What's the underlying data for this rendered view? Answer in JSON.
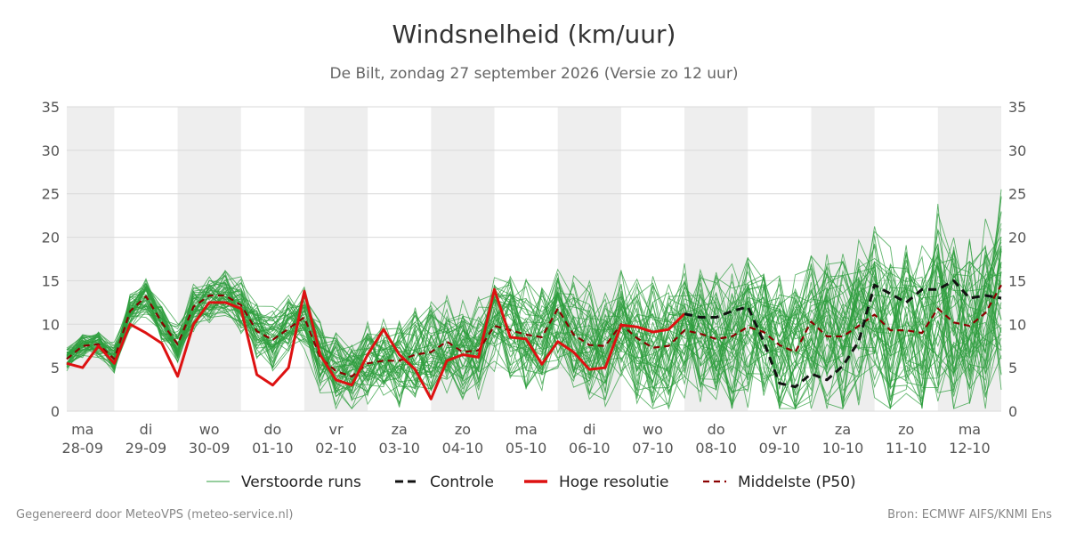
{
  "header": {
    "title": "Windsnelheid (km/uur)",
    "subtitle": "De Bilt, zondag 27 september 2026 (Versie zo 12 uur)"
  },
  "footer": {
    "left": "Gegenereerd door MeteoVPS (meteo-service.nl)",
    "right": "Bron: ECMWF AIFS/KNMI Ens"
  },
  "colors": {
    "ensemble": "#2e9e3e",
    "control": "#111111",
    "hires": "#dd1111",
    "median": "#8b0000",
    "band": "#eeeeee",
    "grid": "#d9d9d9"
  },
  "chart_data": {
    "type": "line",
    "title": "Windsnelheid (km/uur)",
    "ylim": [
      0,
      35
    ],
    "yticks": [
      0,
      5,
      10,
      15,
      20,
      25,
      30,
      35
    ],
    "grid": "horizontal",
    "legend_position": "bottom",
    "x_unit": "days from 28-09 (noon at integer)",
    "xlim": [
      -0.25,
      14.5
    ],
    "day_labels": [
      {
        "day": "ma",
        "date": "28-09"
      },
      {
        "day": "di",
        "date": "29-09"
      },
      {
        "day": "wo",
        "date": "30-09"
      },
      {
        "day": "do",
        "date": "01-10"
      },
      {
        "day": "vr",
        "date": "02-10"
      },
      {
        "day": "za",
        "date": "03-10"
      },
      {
        "day": "zo",
        "date": "04-10"
      },
      {
        "day": "ma",
        "date": "05-10"
      },
      {
        "day": "di",
        "date": "06-10"
      },
      {
        "day": "wo",
        "date": "07-10"
      },
      {
        "day": "do",
        "date": "08-10"
      },
      {
        "day": "vr",
        "date": "09-10"
      },
      {
        "day": "za",
        "date": "10-10"
      },
      {
        "day": "zo",
        "date": "11-10"
      },
      {
        "day": "ma",
        "date": "12-10"
      }
    ],
    "legend": [
      {
        "key": "ensemble",
        "label": "Verstoorde runs",
        "style": "thin"
      },
      {
        "key": "control",
        "label": "Controle",
        "style": "dashed"
      },
      {
        "key": "hires",
        "label": "Hoge resolutie",
        "style": "solid"
      },
      {
        "key": "median",
        "label": "Middelste (P50)",
        "style": "dashed"
      }
    ],
    "series": [
      {
        "key": "hires",
        "x": [
          -0.25,
          0,
          0.25,
          0.5,
          0.75,
          1,
          1.25,
          1.5,
          1.75,
          2,
          2.25,
          2.5,
          2.75,
          3,
          3.25,
          3.5,
          3.75,
          4,
          4.25,
          4.5,
          4.75,
          5,
          5.25,
          5.5,
          5.75,
          6,
          6.25,
          6.5,
          6.75,
          7,
          7.25,
          7.5,
          7.75,
          8,
          8.25,
          8.5,
          8.75,
          9,
          9.25,
          9.5
        ],
        "y": [
          5.5,
          5,
          7.5,
          5.5,
          10,
          9,
          7.8,
          4,
          10,
          12.5,
          12.5,
          11.8,
          4.2,
          3,
          5,
          13.8,
          6.5,
          3.6,
          3,
          6.5,
          9.4,
          6.5,
          4.8,
          1.4,
          5.8,
          6.5,
          6.2,
          14,
          8.5,
          8.3,
          5.4,
          8,
          6.8,
          4.8,
          5,
          9.9,
          9.7,
          9.1,
          9.4,
          11.2
        ]
      },
      {
        "key": "control",
        "x": [
          9.5,
          9.75,
          10,
          10.25,
          10.5,
          10.75,
          11,
          11.25,
          11.5,
          11.75,
          12,
          12.25,
          12.5,
          12.75,
          13,
          13.25,
          13.5,
          13.75,
          14,
          14.25,
          14.5
        ],
        "y": [
          11.2,
          10.8,
          10.8,
          11.5,
          12,
          8,
          3.2,
          2.8,
          4.3,
          3.6,
          5.2,
          8,
          14.5,
          13.5,
          12.5,
          14,
          14,
          15,
          13,
          13.3,
          13
        ]
      },
      {
        "key": "median",
        "x": [
          -0.25,
          0,
          0.25,
          0.5,
          0.75,
          1,
          1.25,
          1.5,
          1.75,
          2,
          2.25,
          2.5,
          2.75,
          3,
          3.25,
          3.5,
          3.75,
          4,
          4.25,
          4.5,
          4.75,
          5,
          5.25,
          5.5,
          5.75,
          6,
          6.25,
          6.5,
          6.75,
          7,
          7.25,
          7.5,
          7.75,
          8,
          8.25,
          8.5,
          8.75,
          9,
          9.25,
          9.5,
          9.75,
          10,
          10.25,
          10.5,
          10.75,
          11,
          11.25,
          11.5,
          11.75,
          12,
          12.25,
          12.5,
          12.75,
          13,
          13.25,
          13.5,
          13.75,
          14,
          14.25,
          14.5
        ],
        "y": [
          6,
          7.5,
          7.7,
          6,
          11.5,
          13.2,
          10.2,
          7.7,
          12,
          13.3,
          13.3,
          12.2,
          9.2,
          8.2,
          9.5,
          10.8,
          6.2,
          4.6,
          4,
          5.5,
          5.8,
          5.8,
          6.5,
          6.8,
          8,
          6.8,
          7,
          9.8,
          9.3,
          8.8,
          8.5,
          11.8,
          8.8,
          7.6,
          7.5,
          10,
          8.4,
          7.3,
          7.5,
          9.3,
          8.9,
          8.3,
          8.6,
          9.7,
          9.1,
          7.6,
          6.8,
          10.3,
          8.6,
          8.6,
          9.8,
          11.1,
          9.3,
          9.3,
          9,
          11.8,
          10.2,
          9.8,
          11.3,
          14.5
        ]
      }
    ]
  }
}
